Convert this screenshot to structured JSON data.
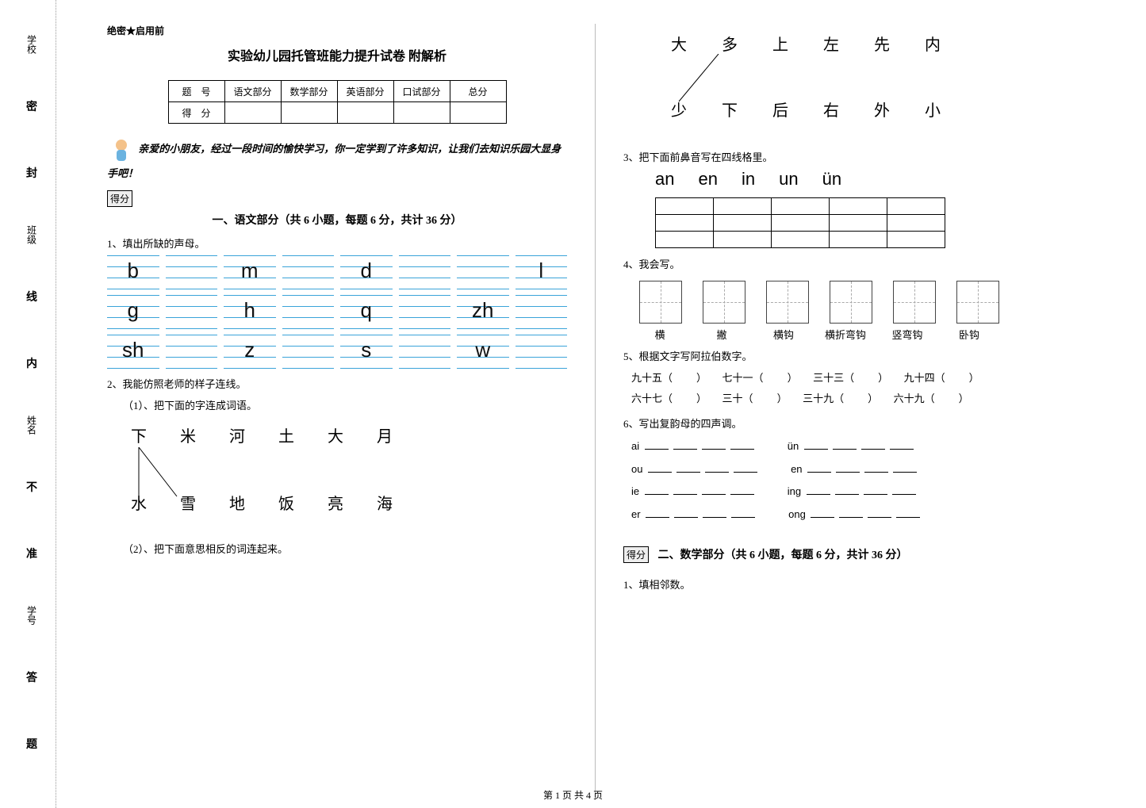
{
  "binding": {
    "labels": [
      "学校",
      "班级",
      "姓名",
      "学号"
    ],
    "seal": [
      "密",
      "封",
      "线",
      "内",
      "不",
      "准",
      "答",
      "题"
    ]
  },
  "header_tag": "绝密★启用前",
  "title": "实验幼儿园托管班能力提升试卷 附解析",
  "score_table": {
    "row1": [
      "题　号",
      "语文部分",
      "数学部分",
      "英语部分",
      "口试部分",
      "总分"
    ],
    "row2_label": "得　分"
  },
  "intro": "亲爱的小朋友，经过一段时间的愉快学习，你一定学到了许多知识，让我们去知识乐园大显身手吧！",
  "scorebox": "得分",
  "section1": {
    "title": "一、语文部分（共 6 小题，每题 6 分，共计 36 分）",
    "q1": "1、填出所缺的声母。",
    "pinyin_rows": [
      [
        "b",
        "",
        "m",
        "",
        "d",
        "",
        "",
        "l"
      ],
      [
        "g",
        "",
        "h",
        "",
        "q",
        "",
        "zh",
        ""
      ],
      [
        "sh",
        "",
        "z",
        "",
        "s",
        "",
        "w",
        ""
      ]
    ],
    "q2": "2、我能仿照老师的样子连线。",
    "q2_1": "（1）、把下面的字连成词语。",
    "match_top": [
      "下",
      "米",
      "河",
      "土",
      "大",
      "月"
    ],
    "match_bottom": [
      "水",
      "雪",
      "地",
      "饭",
      "亮",
      "海"
    ],
    "q2_2": "（2）、把下面意思相反的词连起来。"
  },
  "right": {
    "ant_top": [
      "大",
      "多",
      "上",
      "左",
      "先",
      "内"
    ],
    "ant_bottom": [
      "少",
      "下",
      "后",
      "右",
      "外",
      "小"
    ],
    "q3": "3、把下面前鼻音写在四线格里。",
    "syllables": [
      "an",
      "en",
      "in",
      "un",
      "ün"
    ],
    "q4": "4、我会写。",
    "stroke_labels": [
      "横",
      "撇",
      "横钩",
      "横折弯钩",
      "竖弯钩",
      "卧钩"
    ],
    "q5": "5、根据文字写阿拉伯数字。",
    "num_items": [
      [
        "九十五",
        "七十一",
        "三十三",
        "九十四"
      ],
      [
        "六十七",
        "三十",
        "三十九",
        "六十九"
      ]
    ],
    "q6": "6、写出复韵母的四声调。",
    "tones": [
      [
        "ai",
        "ün"
      ],
      [
        "ou",
        "en"
      ],
      [
        "ie",
        "ing"
      ],
      [
        "er",
        "ong"
      ]
    ]
  },
  "section2": {
    "title": "二、数学部分（共 6 小题，每题 6 分，共计 36 分）",
    "q1": "1、填相邻数。"
  },
  "footer": "第 1 页 共 4 页"
}
